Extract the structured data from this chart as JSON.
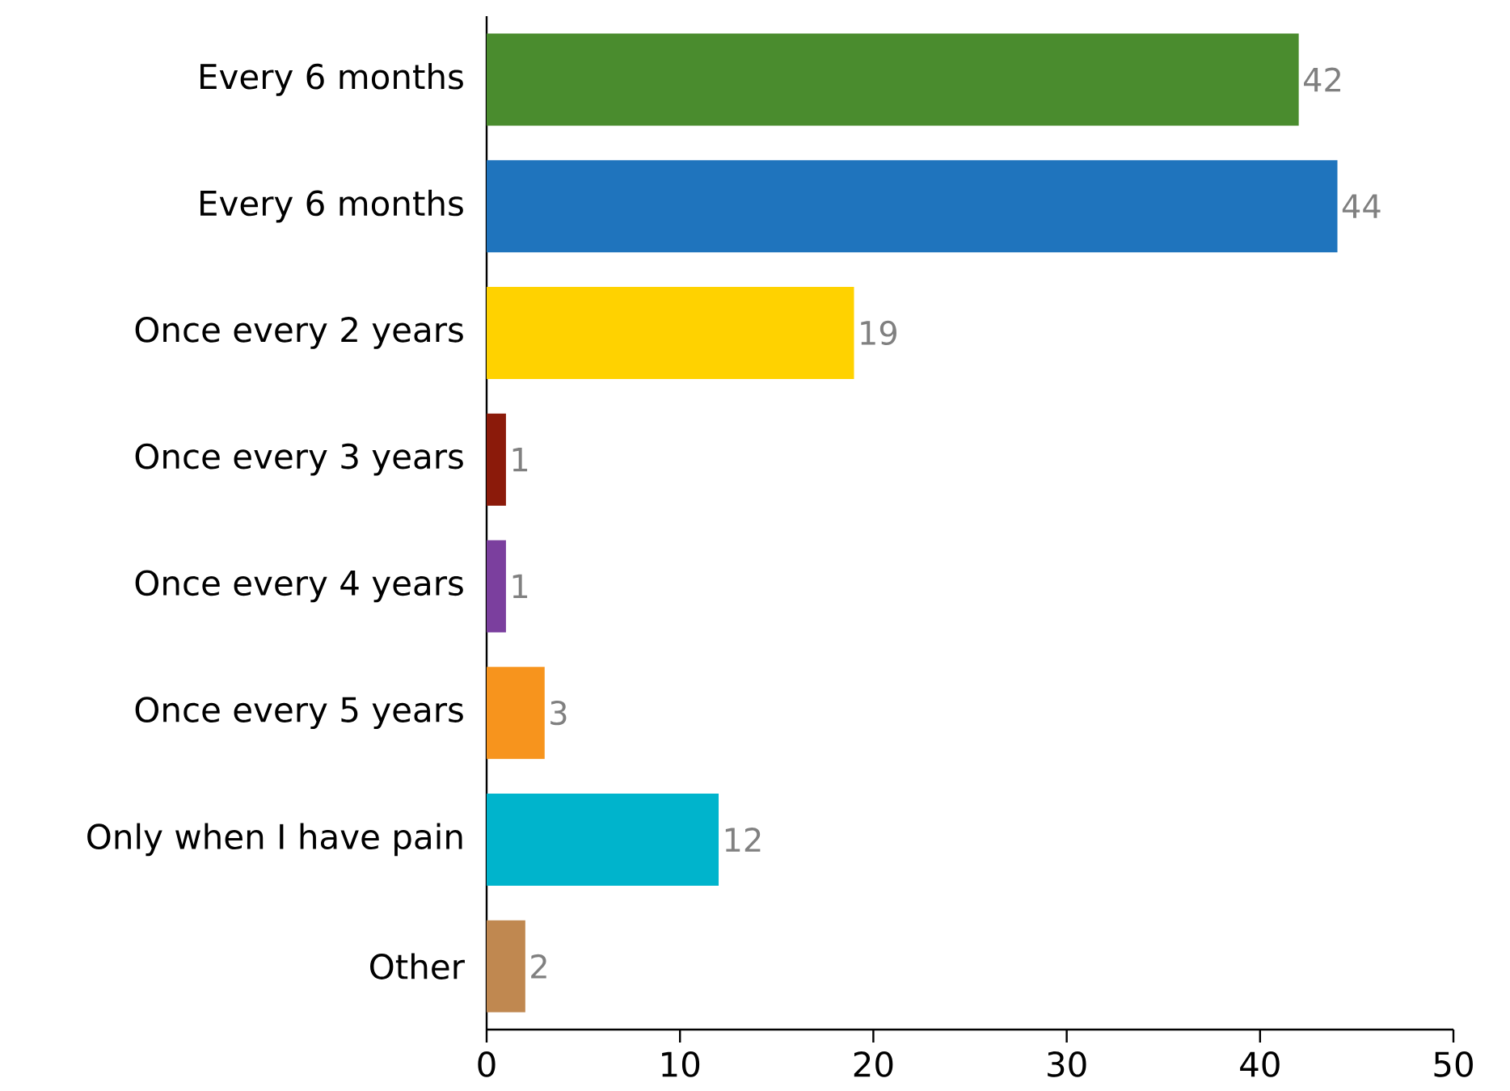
{
  "chart_data": {
    "type": "bar",
    "orientation": "horizontal",
    "categories": [
      "Every 6 months",
      "Every 6 months",
      "Once every 2 years",
      "Once every 3 years",
      "Once every 4 years",
      "Once every 5 years",
      "Only when I have pain",
      "Other"
    ],
    "values": [
      42,
      44,
      19,
      1,
      1,
      3,
      12,
      2
    ],
    "colors": [
      "#4a8c2e",
      "#1f74bd",
      "#ffd200",
      "#8b1a0a",
      "#7b3f9e",
      "#f7941d",
      "#00b4cc",
      "#c08850"
    ],
    "xlim": [
      0,
      50
    ],
    "xticks": [
      0,
      10,
      20,
      30,
      40,
      50
    ],
    "data_labels": true
  }
}
